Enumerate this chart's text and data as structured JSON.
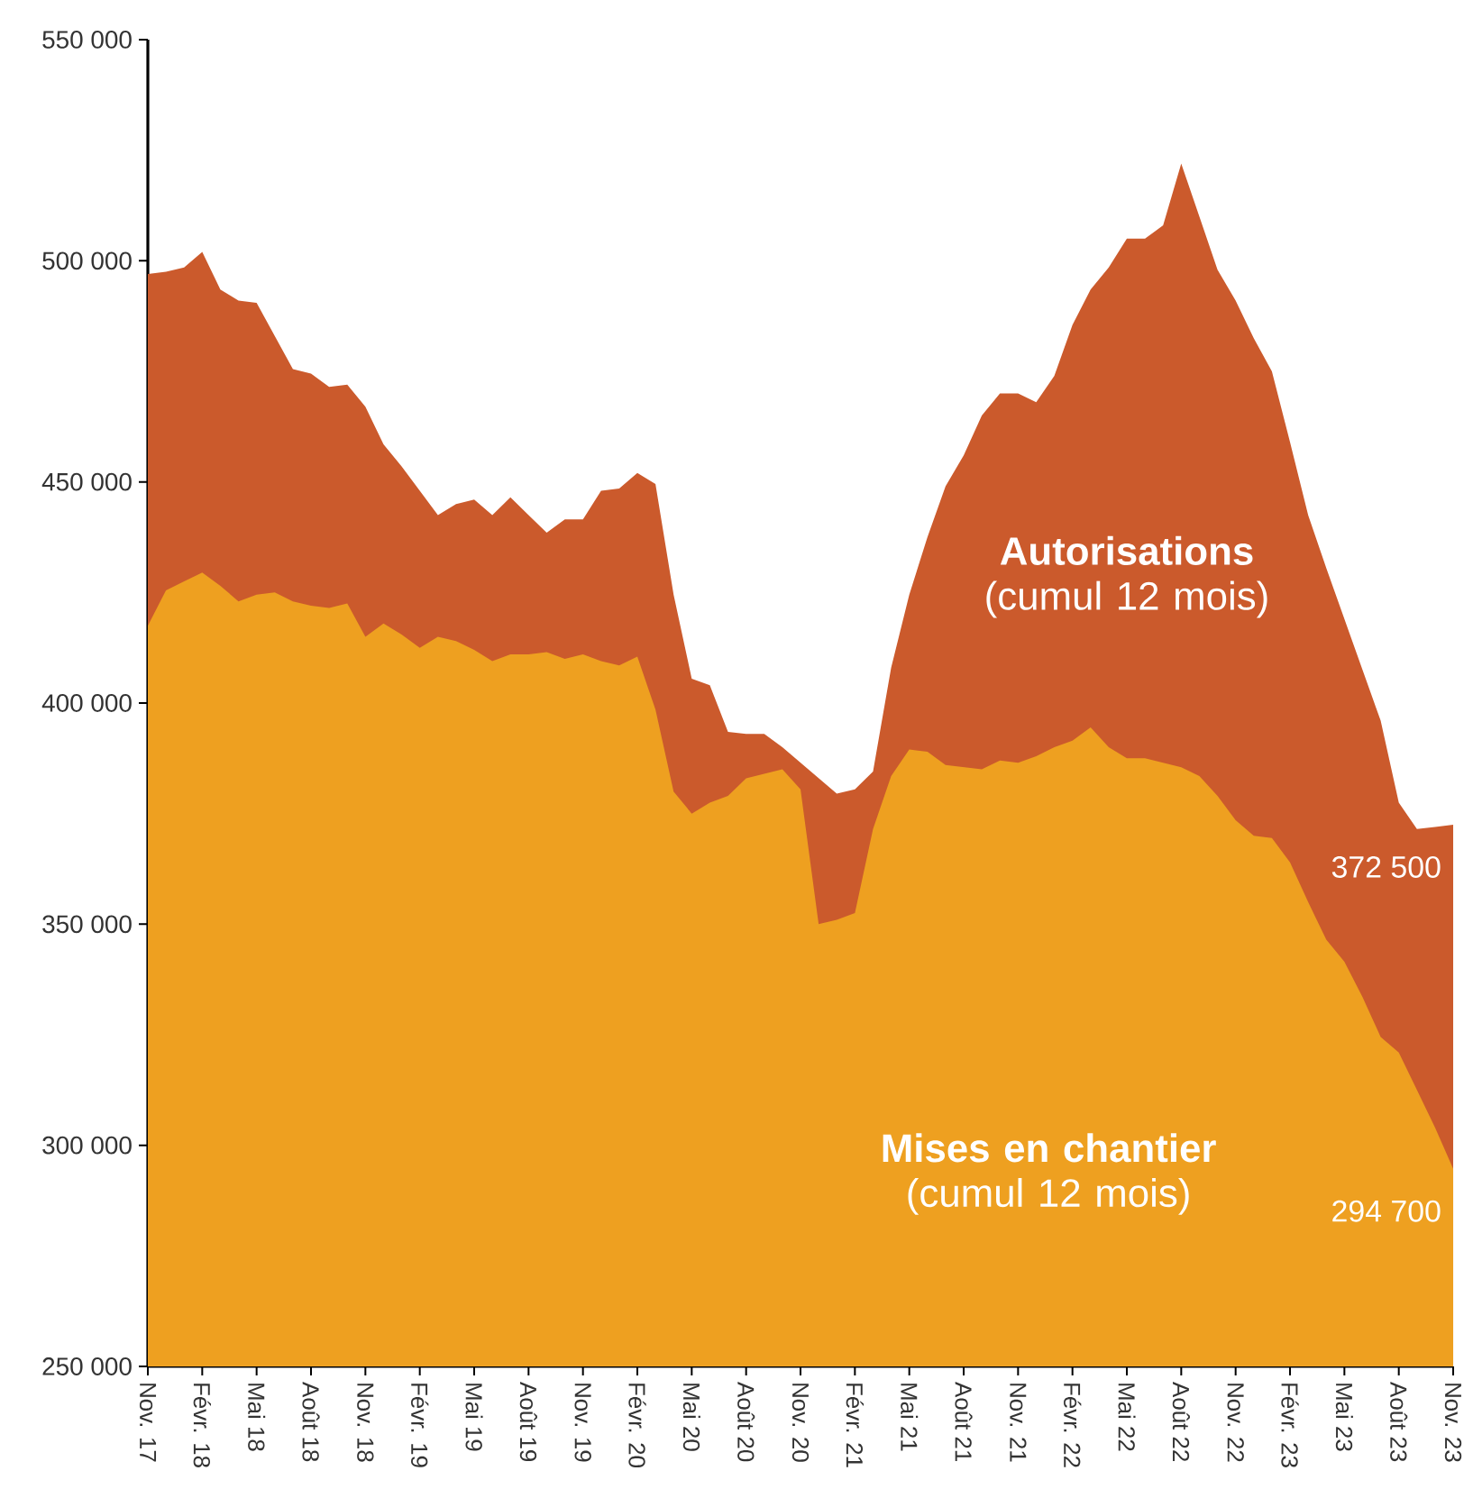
{
  "chart_data": {
    "type": "area",
    "categories": [
      "Nov. 17",
      null,
      null,
      "Févr. 18",
      null,
      null,
      "Mai 18",
      null,
      null,
      "Août 18",
      null,
      null,
      "Nov. 18",
      null,
      null,
      "Févr. 19",
      null,
      null,
      "Mai 19",
      null,
      null,
      "Août 19",
      null,
      null,
      "Nov. 19",
      null,
      null,
      "Févr. 20",
      null,
      null,
      "Mai 20",
      null,
      null,
      "Août 20",
      null,
      null,
      "Nov. 20",
      null,
      null,
      "Févr. 21",
      null,
      null,
      "Mai 21",
      null,
      null,
      "Août 21",
      null,
      null,
      "Nov. 21",
      null,
      null,
      "Févr. 22",
      null,
      null,
      "Mai 22",
      null,
      null,
      "Août 22",
      null,
      null,
      "Nov. 22",
      null,
      null,
      "Févr. 23",
      null,
      null,
      "Mai 23",
      null,
      null,
      "Août 23",
      null,
      null,
      "Nov. 23"
    ],
    "ylim": [
      250000,
      550000
    ],
    "yticks": [
      {
        "value": 250000,
        "label": "250 000"
      },
      {
        "value": 300000,
        "label": "300 000"
      },
      {
        "value": 350000,
        "label": "350 000"
      },
      {
        "value": 400000,
        "label": "400 000"
      },
      {
        "value": 450000,
        "label": "450 000"
      },
      {
        "value": 500000,
        "label": "500 000"
      },
      {
        "value": 550000,
        "label": "550 000"
      }
    ],
    "series": [
      {
        "name": "**Autorisations** (cumul 12 mois)",
        "color": "#cb5a2c",
        "values": [
          497000,
          497500,
          498500,
          502000,
          493500,
          491000,
          490500,
          483000,
          475500,
          474500,
          471500,
          472000,
          467000,
          458500,
          453500,
          448000,
          442500,
          445000,
          446000,
          442500,
          446500,
          442500,
          438500,
          441500,
          441500,
          448000,
          448500,
          452000,
          449500,
          424500,
          405500,
          404000,
          393500,
          393000,
          393000,
          390000,
          386500,
          383000,
          379500,
          380500,
          384500,
          408000,
          424500,
          437500,
          449000,
          456000,
          465000,
          470000,
          470000,
          468000,
          474000,
          485500,
          493500,
          498500,
          505000,
          505000,
          508000,
          522000,
          510000,
          498000,
          491000,
          482500,
          475000,
          459000,
          442500,
          430500,
          419000,
          407500,
          396000,
          377500,
          371500,
          372000,
          372500
        ],
        "value_labels": [
          null,
          null,
          null,
          null,
          null,
          null,
          null,
          null,
          null,
          null,
          null,
          null,
          null,
          null,
          null,
          null,
          null,
          null,
          null,
          null,
          null,
          null,
          null,
          null,
          null,
          null,
          null,
          null,
          null,
          null,
          null,
          null,
          null,
          null,
          null,
          null,
          null,
          null,
          null,
          null,
          null,
          null,
          null,
          null,
          null,
          null,
          null,
          null,
          null,
          null,
          null,
          null,
          null,
          null,
          null,
          null,
          null,
          null,
          null,
          null,
          null,
          null,
          null,
          null,
          null,
          null,
          null,
          null,
          null,
          null,
          null,
          null,
          "372 500"
        ]
      },
      {
        "name": "**Mises en chantier** (cumul 12 mois)",
        "color": "#eea020",
        "values": [
          417500,
          425500,
          427500,
          429500,
          426500,
          423000,
          424500,
          425000,
          423000,
          422000,
          421500,
          422500,
          415000,
          418000,
          415500,
          412500,
          415000,
          414000,
          412000,
          409500,
          411000,
          411000,
          411500,
          410000,
          411000,
          409500,
          408500,
          410500,
          398500,
          380000,
          375000,
          377500,
          379000,
          383000,
          384000,
          385000,
          380500,
          350000,
          351000,
          352500,
          371500,
          383500,
          389500,
          389000,
          386000,
          385500,
          385000,
          387000,
          386500,
          388000,
          390000,
          391500,
          394500,
          390000,
          387500,
          387500,
          386500,
          385500,
          383500,
          379000,
          373500,
          370000,
          369500,
          364000,
          355000,
          346500,
          341500,
          333500,
          324500,
          321000,
          312500,
          304000,
          294700
        ],
        "value_labels": [
          null,
          null,
          null,
          null,
          null,
          null,
          null,
          null,
          null,
          null,
          null,
          null,
          null,
          null,
          null,
          null,
          null,
          null,
          null,
          null,
          null,
          null,
          null,
          null,
          null,
          null,
          null,
          null,
          null,
          null,
          null,
          null,
          null,
          null,
          null,
          null,
          null,
          null,
          null,
          null,
          null,
          null,
          null,
          null,
          null,
          null,
          null,
          null,
          null,
          null,
          null,
          null,
          null,
          null,
          null,
          null,
          null,
          null,
          null,
          null,
          null,
          null,
          null,
          null,
          null,
          null,
          null,
          null,
          null,
          null,
          null,
          null,
          "294 700"
        ]
      }
    ]
  }
}
